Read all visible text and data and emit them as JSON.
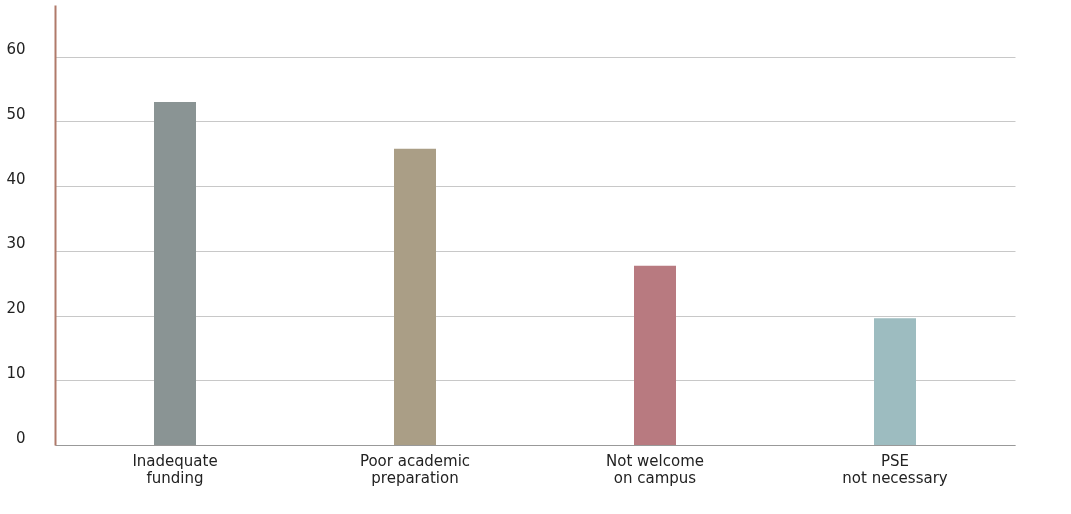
{
  "chart_data": {
    "type": "bar",
    "categories": [
      "Inadequate\nfunding",
      "Poor academic\npreparation",
      "Not welcome\non campus",
      "PSE\nnot necessary"
    ],
    "values": [
      53,
      45.8,
      27.7,
      19.6
    ],
    "colors": [
      "#8a9494",
      "#aa9e86",
      "#b87a80",
      "#9dbcc0"
    ],
    "ylim": [
      0,
      68
    ],
    "yticks": [
      0,
      10,
      20,
      30,
      40,
      50,
      60
    ],
    "grid": "y"
  }
}
